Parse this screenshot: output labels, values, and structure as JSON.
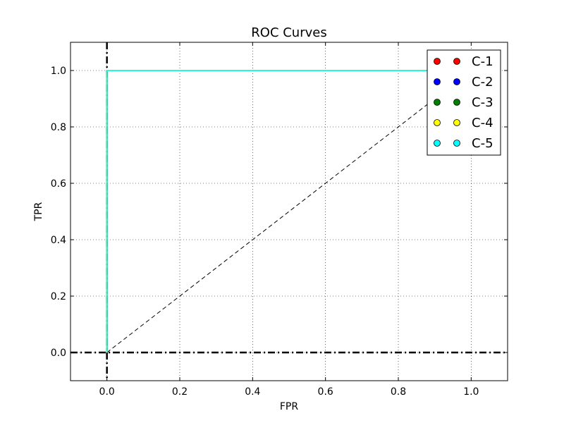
{
  "chart_data": {
    "type": "line",
    "title": "ROC Curves",
    "xlabel": "FPR",
    "ylabel": "TPR",
    "xlim": [
      -0.1,
      1.1
    ],
    "ylim": [
      -0.1,
      1.1
    ],
    "grid": true,
    "x_ticks": [
      "0.0",
      "0.2",
      "0.4",
      "0.6",
      "0.8",
      "1.0"
    ],
    "y_ticks": [
      "0.0",
      "0.2",
      "0.4",
      "0.6",
      "0.8",
      "1.0"
    ],
    "legend_position": "top-right",
    "series": [
      {
        "name": "C-1",
        "color": "#ff0000",
        "x": [
          0.0,
          0.0,
          1.0
        ],
        "y": [
          0.0,
          1.0,
          1.0
        ]
      },
      {
        "name": "C-2",
        "color": "#0000ff",
        "x": [
          0.0,
          0.0,
          1.0
        ],
        "y": [
          0.0,
          1.0,
          1.0
        ]
      },
      {
        "name": "C-3",
        "color": "#008000",
        "x": [
          0.0,
          0.0,
          1.0
        ],
        "y": [
          0.0,
          1.0,
          1.0
        ]
      },
      {
        "name": "C-4",
        "color": "#ffff00",
        "x": [
          0.0,
          0.0,
          1.0
        ],
        "y": [
          0.0,
          1.0,
          1.0
        ]
      },
      {
        "name": "C-5",
        "color": "#00ffff",
        "x": [
          0.0,
          0.0,
          1.0
        ],
        "y": [
          0.0,
          1.0,
          1.0
        ]
      }
    ],
    "reference_lines": [
      {
        "type": "diagonal",
        "style": "dashed",
        "x": [
          0.0,
          1.0
        ],
        "y": [
          0.0,
          1.0
        ]
      },
      {
        "type": "horizontal",
        "style": "dash-dot",
        "y": 0.0
      },
      {
        "type": "vertical",
        "style": "dash-dot",
        "x": 0.0
      }
    ]
  }
}
